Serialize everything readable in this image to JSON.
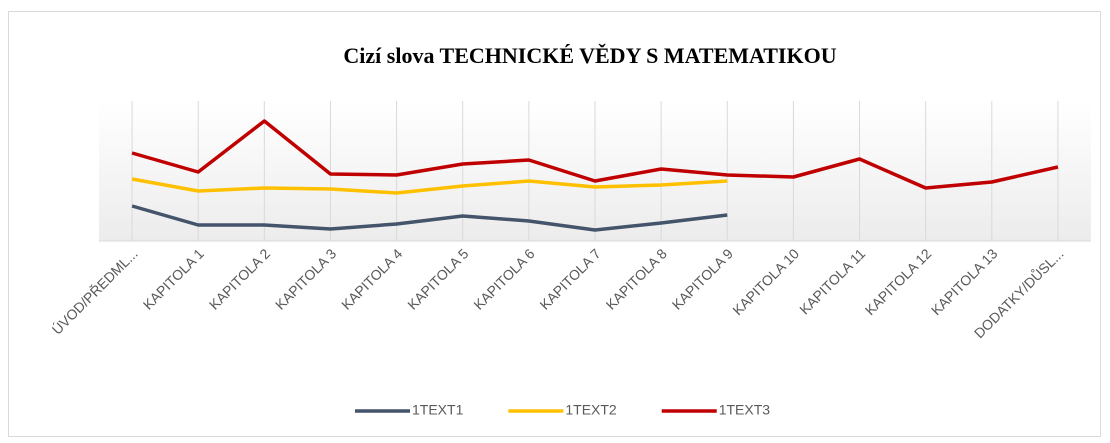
{
  "chart_data": {
    "type": "line",
    "title": "Cizí slova TECHNICKÉ VĚDY S MATEMATIKOU",
    "categories": [
      "ÚVOD/PŘEDML...",
      "KAPITOLA 1",
      "KAPITOLA 2",
      "KAPITOLA 3",
      "KAPITOLA 4",
      "KAPITOLA 5",
      "KAPITOLA 6",
      "KAPITOLA 7",
      "KAPITOLA 8",
      "KAPITOLA 9",
      "KAPITOLA 10",
      "KAPITOLA 11",
      "KAPITOLA 12",
      "KAPITOLA 13",
      "DODATKY/DŮSL..."
    ],
    "series": [
      {
        "name": "1TEXT1",
        "color": "#44546a",
        "values": [
          35,
          16,
          16,
          12,
          17,
          25,
          20,
          11,
          18,
          26,
          null,
          null,
          null,
          null,
          null
        ]
      },
      {
        "name": "1TEXT2",
        "color": "#ffc000",
        "values": [
          62,
          50,
          53,
          52,
          48,
          55,
          60,
          54,
          56,
          60,
          null,
          null,
          null,
          null,
          null
        ]
      },
      {
        "name": "1TEXT3",
        "color": "#c00000",
        "values": [
          88,
          69,
          120,
          67,
          66,
          77,
          81,
          60,
          72,
          66,
          64,
          82,
          53,
          59,
          74
        ]
      }
    ],
    "ylim": [
      0,
      140
    ],
    "grid": true,
    "legend": "bottom"
  }
}
